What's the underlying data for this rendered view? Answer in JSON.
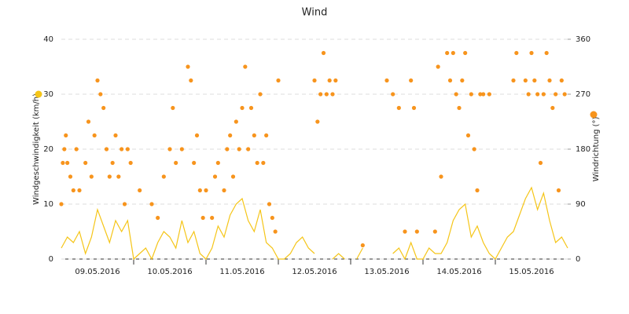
{
  "chart_data": {
    "type": "line",
    "title": "Wind",
    "xlim": [
      0,
      168
    ],
    "xticks": [
      {
        "value": 12,
        "label": "09.05.2016"
      },
      {
        "value": 36,
        "label": "10.05.2016"
      },
      {
        "value": 60,
        "label": "11.05.2016"
      },
      {
        "value": 84,
        "label": "12.05.2016"
      },
      {
        "value": 108,
        "label": "13.05.2016"
      },
      {
        "value": 132,
        "label": "14.05.2016"
      },
      {
        "value": 156,
        "label": "15.05.2016"
      }
    ],
    "ylim": [
      0,
      40
    ],
    "yticks": [
      0,
      10,
      20,
      30,
      40
    ],
    "y2lim": [
      0,
      360
    ],
    "y2ticks": [
      0,
      90,
      180,
      270,
      360
    ],
    "grid": true,
    "series": [
      {
        "name": "Windgeschwindigkeit (km/h)",
        "type": "line",
        "color": "#f5c518",
        "x": [
          0,
          2,
          4,
          6,
          8,
          10,
          12,
          14,
          16,
          18,
          20,
          22,
          24,
          26,
          28,
          30,
          32,
          34,
          36,
          38,
          40,
          42,
          44,
          46,
          48,
          50,
          52,
          54,
          56,
          58,
          60,
          62,
          64,
          66,
          68,
          70,
          72,
          74,
          76,
          78,
          80,
          82,
          84,
          86,
          88,
          90,
          92,
          94,
          96,
          98,
          100,
          102,
          104,
          106,
          108,
          110,
          112,
          114,
          116,
          118,
          120,
          122,
          124,
          126,
          128,
          130,
          132,
          134,
          136,
          138,
          140,
          142,
          144,
          146,
          148,
          150,
          152,
          154,
          156,
          158,
          160,
          162,
          164,
          166,
          168
        ],
        "values": [
          2,
          4,
          3,
          5,
          1,
          4,
          9,
          6,
          3,
          7,
          5,
          7,
          0,
          1,
          2,
          0,
          3,
          5,
          4,
          2,
          7,
          3,
          5,
          1,
          0,
          2,
          6,
          4,
          8,
          10,
          11,
          7,
          5,
          9,
          3,
          2,
          0,
          0,
          1,
          3,
          4,
          2,
          1,
          null,
          null,
          0,
          1,
          0,
          null,
          0,
          2,
          null,
          null,
          null,
          null,
          1,
          2,
          0,
          3,
          0,
          0,
          2,
          1,
          1,
          3,
          7,
          9,
          10,
          4,
          6,
          3,
          1,
          0,
          2,
          4,
          5,
          8,
          11,
          13,
          9,
          12,
          7,
          3,
          4,
          2
        ]
      },
      {
        "name": "Windrichtung (°)",
        "type": "scatter",
        "axis": "y2",
        "color": "#f7941d",
        "x": [
          0,
          0.5,
          1,
          1.5,
          2,
          3,
          4,
          5,
          6,
          8,
          9,
          10,
          11,
          12,
          13,
          14,
          15,
          16,
          17,
          18,
          19,
          20,
          21,
          22,
          23,
          26,
          30,
          32,
          34,
          36,
          37,
          38,
          40,
          42,
          43,
          44,
          45,
          46,
          47,
          48,
          50,
          51,
          52,
          54,
          55,
          56,
          57,
          58,
          59,
          60,
          61,
          62,
          63,
          64,
          65,
          66,
          67,
          68,
          69,
          70,
          71,
          72,
          84,
          85,
          86,
          87,
          88,
          89,
          90,
          91,
          100,
          108,
          110,
          112,
          114,
          116,
          117,
          118,
          124,
          125,
          126,
          128,
          129,
          130,
          131,
          132,
          133,
          134,
          135,
          136,
          137,
          138,
          139,
          140,
          142,
          150,
          151,
          154,
          155,
          156,
          157,
          158,
          159,
          160,
          161,
          162,
          163,
          164,
          165,
          166,
          167
        ],
        "values": [
          90,
          157.5,
          180,
          202.5,
          157.5,
          135,
          112.5,
          180,
          112.5,
          157.5,
          225,
          135,
          202.5,
          292.5,
          270,
          247.5,
          180,
          135,
          157.5,
          202.5,
          135,
          180,
          90,
          180,
          157.5,
          112.5,
          90,
          67.5,
          135,
          180,
          247.5,
          157.5,
          180,
          315,
          292.5,
          157.5,
          202.5,
          112.5,
          67.5,
          112.5,
          67.5,
          135,
          157.5,
          112.5,
          180,
          202.5,
          135,
          225,
          180,
          247.5,
          315,
          180,
          247.5,
          202.5,
          157.5,
          270,
          157.5,
          202.5,
          90,
          67.5,
          45,
          292.5,
          292.5,
          225,
          270,
          337.5,
          270,
          292.5,
          270,
          292.5,
          22.5,
          292.5,
          270,
          247.5,
          45,
          292.5,
          247.5,
          45,
          45,
          315,
          135,
          337.5,
          292.5,
          337.5,
          270,
          247.5,
          292.5,
          337.5,
          202.5,
          270,
          180,
          112.5,
          270,
          270,
          270,
          292.5,
          337.5,
          292.5,
          270,
          337.5,
          292.5,
          270,
          157.5,
          270,
          337.5,
          292.5,
          247.5,
          270,
          112.5,
          292.5,
          270
        ]
      }
    ]
  }
}
